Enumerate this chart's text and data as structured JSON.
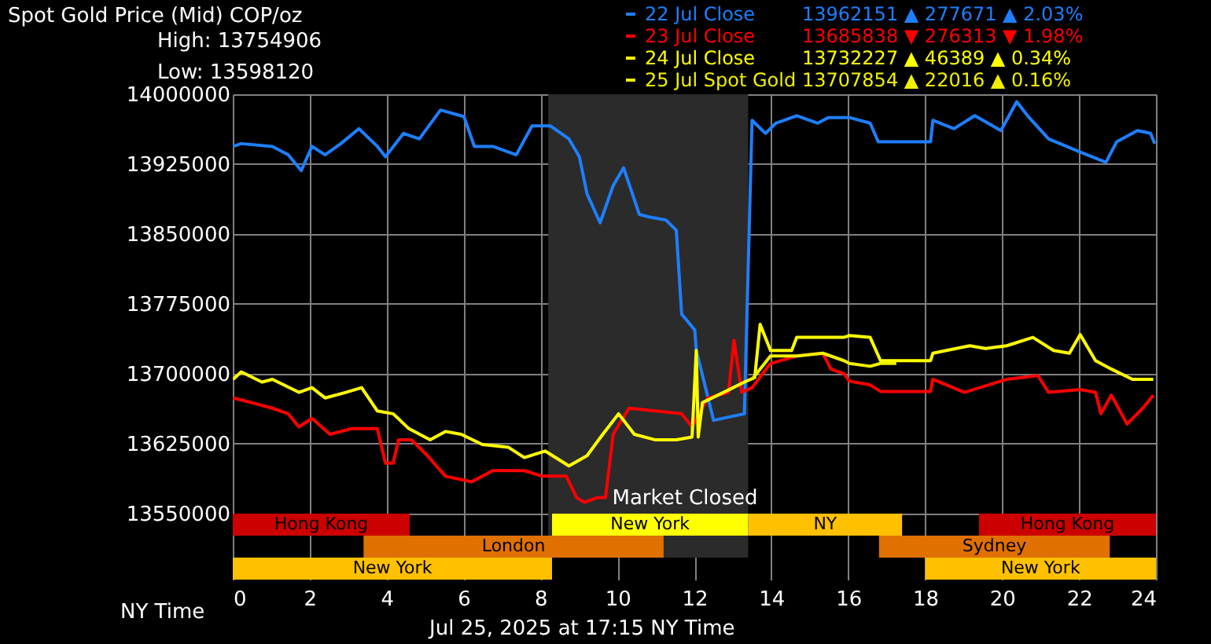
{
  "chart_data": {
    "type": "line",
    "title": "Spot Gold Price (Mid) COP/oz",
    "xlabel": "NY Time",
    "xlim": [
      0,
      24
    ],
    "xticks": [
      0,
      2,
      4,
      6,
      8,
      10,
      12,
      14,
      16,
      18,
      20,
      22,
      24
    ],
    "ylim": [
      13479000,
      14000000
    ],
    "yticks": [
      13550000,
      13625000,
      13700000,
      13775000,
      13850000,
      13925000,
      14000000
    ],
    "grid": true,
    "legend": "top right",
    "line_style": "solid",
    "series": [
      {
        "name": "22 Jul Close",
        "color": "#1e7fff",
        "x": [
          0.01,
          0.22,
          1.03,
          1.44,
          1.78,
          2.06,
          2.4,
          2.81,
          3.28,
          3.76,
          3.97,
          4.44,
          4.85,
          5.4,
          6.01,
          6.28,
          6.76,
          7.37,
          7.78,
          8.26,
          8.74,
          9.01,
          9.21,
          9.55,
          9.89,
          10.16,
          10.57,
          10.85,
          11.26,
          11.53,
          11.67,
          12.01,
          12.05,
          12.5,
          13.3,
          13.5,
          13.85,
          14.12,
          14.66,
          15.21,
          15.48,
          16.03,
          16.57,
          16.78,
          18.14,
          18.2,
          18.75,
          19.29,
          19.97,
          20.38,
          20.66,
          21.21,
          22.03,
          22.7,
          22.98,
          23.52,
          23.86,
          23.97
        ],
        "values": [
          13944000,
          13947000,
          13944000,
          13935000,
          13918000,
          13944000,
          13935000,
          13947000,
          13963000,
          13944000,
          13933000,
          13958000,
          13952000,
          13983000,
          13976000,
          13944000,
          13944000,
          13935000,
          13966000,
          13966000,
          13952000,
          13933000,
          13893000,
          13862000,
          13902000,
          13921000,
          13871000,
          13868000,
          13865000,
          13854000,
          13764000,
          13747000,
          13725000,
          13650000,
          13657000,
          13972000,
          13958000,
          13969000,
          13977000,
          13969000,
          13975000,
          13975000,
          13969000,
          13949000,
          13949000,
          13972000,
          13963000,
          13977000,
          13961000,
          13992000,
          13977000,
          13952000,
          13938000,
          13927000,
          13949000,
          13961000,
          13958000,
          13947000
        ]
      },
      {
        "name": "23 Jul Close",
        "color": "#ff0000",
        "x": [
          0.01,
          0.49,
          1.03,
          1.44,
          1.72,
          2.06,
          2.53,
          3.08,
          3.76,
          3.97,
          4.17,
          4.31,
          4.65,
          5.06,
          5.53,
          6.21,
          6.76,
          7.58,
          8.05,
          8.67,
          8.94,
          9.14,
          9.48,
          9.69,
          9.89,
          10.3,
          10.99,
          11.67,
          11.94,
          12.35,
          12.89,
          13.03,
          13.23,
          13.5,
          13.98,
          14.66,
          15.34,
          15.55,
          15.89,
          16.03,
          16.57,
          16.84,
          18.14,
          18.2,
          19.02,
          20.12,
          20.93,
          21.21,
          22.03,
          22.43,
          22.57,
          22.84,
          23.25,
          23.66,
          23.93
        ],
        "values": [
          13674000,
          13669000,
          13663000,
          13657000,
          13643000,
          13652000,
          13635000,
          13641000,
          13641000,
          13604000,
          13604000,
          13629000,
          13629000,
          13612000,
          13590000,
          13584000,
          13596000,
          13596000,
          13590000,
          13590000,
          13567000,
          13562000,
          13567000,
          13567000,
          13635000,
          13663000,
          13660000,
          13657000,
          13643000,
          13674000,
          13680000,
          13736000,
          13680000,
          13685000,
          13711000,
          13719000,
          13722000,
          13705000,
          13700000,
          13692000,
          13688000,
          13681000,
          13681000,
          13694000,
          13680000,
          13694000,
          13698000,
          13680000,
          13683000,
          13680000,
          13657000,
          13677000,
          13646000,
          13663000,
          13677000
        ]
      },
      {
        "name": "24 Jul Close",
        "color": "#ffff00",
        "x": [
          0.01,
          0.22,
          0.76,
          1.03,
          1.72,
          2.06,
          2.4,
          2.94,
          3.35,
          3.76,
          4.17,
          4.58,
          5.13,
          5.53,
          5.94,
          6.49,
          7.17,
          7.58,
          8.12,
          8.74,
          9.21,
          9.62,
          10.03,
          10.44,
          10.99,
          11.53,
          11.94,
          12.05,
          12.1,
          12.21,
          12.76,
          13.3,
          13.57,
          13.71,
          13.98,
          14.53,
          14.66,
          15.89,
          16.03,
          16.57,
          16.84,
          18.14,
          18.2,
          19.16,
          19.57,
          20.12,
          20.8,
          21.34,
          21.75,
          22.03,
          22.43,
          22.84,
          23.39,
          23.93
        ],
        "values": [
          13694000,
          13702000,
          13691000,
          13694000,
          13680000,
          13685000,
          13674000,
          13680000,
          13685000,
          13660000,
          13657000,
          13641000,
          13629000,
          13638000,
          13635000,
          13624000,
          13621000,
          13610000,
          13617000,
          13601000,
          13612000,
          13635000,
          13657000,
          13635000,
          13629000,
          13629000,
          13632000,
          13725000,
          13632000,
          13669000,
          13680000,
          13691000,
          13696000,
          13753000,
          13725000,
          13725000,
          13739000,
          13739000,
          13741000,
          13739000,
          13714000,
          13714000,
          13722000,
          13730000,
          13727000,
          13730000,
          13739000,
          13725000,
          13722000,
          13742000,
          13714000,
          13705000,
          13694000,
          13694000
        ]
      },
      {
        "name": "25 Jul Spot Gold",
        "color": "#f0f000",
        "x": [
          13.5,
          13.98,
          14.66,
          15.34,
          15.89,
          16.03,
          16.57,
          16.84,
          17.25
        ],
        "values": [
          13694000,
          13719000,
          13719000,
          13722000,
          13714000,
          13711000,
          13708000,
          13711000,
          13711000
        ]
      }
    ],
    "bands": [
      {
        "axis": "x",
        "from": 8.2,
        "to": 13.4,
        "label": "Market Closed",
        "color": "#2b2b2b"
      },
      {
        "axis": "x",
        "from": 0,
        "to": 4.6,
        "label": "Hong Kong",
        "color": "#cc0000"
      },
      {
        "axis": "x",
        "from": 19.4,
        "to": 24,
        "label": "Hong Kong",
        "color": "#cc0000"
      },
      {
        "axis": "x",
        "from": 3.4,
        "to": 11.2,
        "label": "London",
        "color": "#e07000"
      },
      {
        "axis": "x",
        "from": 16.8,
        "to": 22.8,
        "label": "Sydney",
        "color": "#e07000"
      },
      {
        "axis": "x",
        "from": 0,
        "to": 8.3,
        "label": "New York",
        "color": "#ffc000"
      },
      {
        "axis": "x",
        "from": 8.3,
        "to": 13.4,
        "label": "New York",
        "color": "#ffff00"
      },
      {
        "axis": "x",
        "from": 13.4,
        "to": 17.4,
        "label": "NY",
        "color": "#ffc000"
      },
      {
        "axis": "x",
        "from": 18,
        "to": 24,
        "label": "New York",
        "color": "#ffc000"
      }
    ],
    "annotations": [
      "High: 13754906",
      "Low: 13598120",
      "13962151 ▲ 277671 ▲ 2.03%",
      "13685838 ▼ 276313 ▼ 1.98%",
      "13732227 ▲ 46389 ▲ 0.34%",
      "13707854 ▲ 22016 ▲ 0.16%",
      "Jul 25, 2025 at 17:15 NY Time"
    ]
  }
}
